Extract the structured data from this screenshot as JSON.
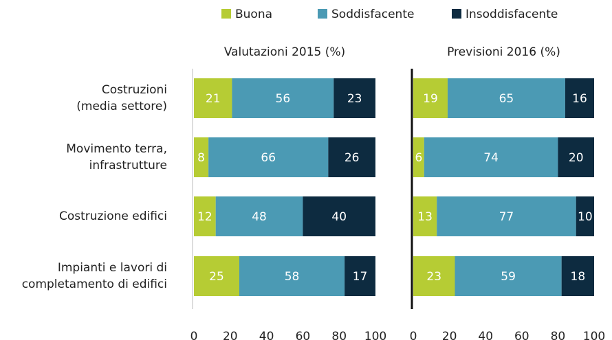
{
  "chart_data": {
    "type": "bar",
    "orientation": "horizontal",
    "stacked": true,
    "legend_position": "top",
    "categories": [
      "Costruzioni\n(media settore)",
      "Movimento terra,\ninfrastrutture",
      "Costruzione edifici",
      "Impianti e lavori di\ncompletamento di edifici"
    ],
    "legend": [
      {
        "name": "Buona",
        "color": "#b6cc34"
      },
      {
        "name": "Soddisfacente",
        "color": "#4b9ab4"
      },
      {
        "name": "Insoddisfacente",
        "color": "#0d2b40"
      }
    ],
    "panels": [
      {
        "title": "Valutazioni 2015 (%)",
        "xlim": [
          0,
          100
        ],
        "xticks": [
          0,
          20,
          40,
          60,
          80,
          100
        ],
        "series": [
          {
            "values": [
              21,
              8,
              12,
              25
            ]
          },
          {
            "values": [
              56,
              66,
              48,
              58
            ]
          },
          {
            "values": [
              23,
              26,
              40,
              17
            ]
          }
        ]
      },
      {
        "title": "Previsioni 2016 (%)",
        "xlim": [
          0,
          100
        ],
        "xticks": [
          0,
          20,
          40,
          60,
          80,
          100
        ],
        "series": [
          {
            "values": [
              19,
              6,
              13,
              23
            ]
          },
          {
            "values": [
              65,
              74,
              77,
              59
            ]
          },
          {
            "values": [
              16,
              20,
              10,
              18
            ]
          }
        ]
      }
    ]
  }
}
